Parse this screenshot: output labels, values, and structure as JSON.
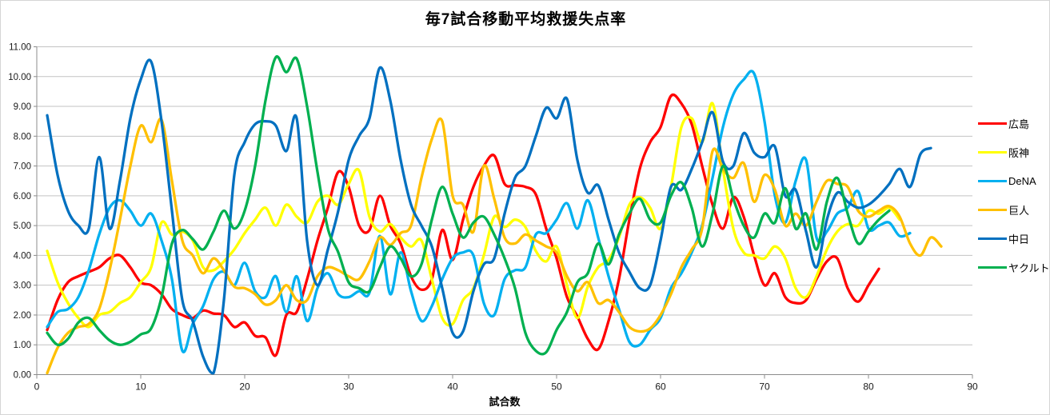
{
  "title": "毎7試合移動平均救援失点率",
  "x_axis": {
    "label": "試合数",
    "tick_labels": [
      "0",
      "10",
      "20",
      "30",
      "40",
      "50",
      "60",
      "70",
      "80",
      "90"
    ],
    "min": 0,
    "max": 90
  },
  "y_axis": {
    "tick_labels": [
      "0.00",
      "1.00",
      "2.00",
      "3.00",
      "4.00",
      "5.00",
      "6.00",
      "7.00",
      "8.00",
      "9.00",
      "10.00",
      "11.00"
    ],
    "min": 0,
    "max": 11
  },
  "legend": {
    "position": "right",
    "items": [
      {
        "id": "hiroshima",
        "label": "広島",
        "color": "#FF0000"
      },
      {
        "id": "hanshin",
        "label": "阪神",
        "color": "#FFFF00"
      },
      {
        "id": "dena",
        "label": "DeNA",
        "color": "#00B0F0"
      },
      {
        "id": "kyojin",
        "label": "巨人",
        "color": "#FFC000"
      },
      {
        "id": "chunichi",
        "label": "中日",
        "color": "#0070C0"
      },
      {
        "id": "yakult",
        "label": "ヤクルト",
        "color": "#00B050"
      }
    ]
  },
  "chart_data": {
    "type": "line",
    "title": "毎7試合移動平均救援失点率",
    "xlabel": "試合数",
    "ylabel": "",
    "xlim": [
      0,
      90
    ],
    "ylim": [
      0,
      11
    ],
    "x_tick_step": 10,
    "y_tick_step": 1,
    "grid": true,
    "smooth": true,
    "x_start": 1,
    "legend_position": "right",
    "series": [
      {
        "id": "hiroshima",
        "name": "広島",
        "color": "#FF0000",
        "values": [
          1.5,
          2.5,
          3.1,
          3.3,
          3.45,
          3.6,
          3.9,
          4.0,
          3.6,
          3.1,
          3.0,
          2.7,
          2.2,
          2.0,
          1.9,
          2.15,
          2.05,
          2.0,
          1.6,
          1.75,
          1.3,
          1.25,
          0.65,
          2.0,
          2.1,
          3.2,
          4.5,
          5.6,
          6.8,
          6.3,
          5.0,
          4.85,
          6.0,
          5.0,
          4.4,
          3.3,
          2.85,
          3.2,
          4.85,
          3.85,
          5.2,
          6.3,
          7.0,
          7.35,
          6.4,
          6.35,
          6.3,
          6.05,
          4.9,
          3.9,
          2.6,
          1.95,
          1.2,
          0.85,
          1.8,
          3.2,
          5.2,
          6.9,
          7.8,
          8.3,
          9.35,
          9.1,
          8.4,
          7.0,
          5.7,
          4.9,
          5.95,
          5.3,
          4.0,
          3.0,
          3.4,
          2.6,
          2.4,
          2.5,
          3.2,
          3.8,
          3.9,
          2.9,
          2.45,
          3.0,
          3.55
        ]
      },
      {
        "id": "hanshin",
        "name": "阪神",
        "color": "#FFFF00",
        "values": [
          4.15,
          3.1,
          2.4,
          1.9,
          1.6,
          2.0,
          2.1,
          2.4,
          2.6,
          3.1,
          3.6,
          5.1,
          4.7,
          4.8,
          4.5,
          3.6,
          3.5,
          3.8,
          4.2,
          4.75,
          5.2,
          5.6,
          5.0,
          5.7,
          5.3,
          5.1,
          5.8,
          6.0,
          5.7,
          6.4,
          6.85,
          5.3,
          4.8,
          5.05,
          4.6,
          4.3,
          4.5,
          3.2,
          1.9,
          1.7,
          2.5,
          2.9,
          4.0,
          5.3,
          4.95,
          5.2,
          4.95,
          4.15,
          3.8,
          4.3,
          3.0,
          1.9,
          2.95,
          3.6,
          3.85,
          4.6,
          5.7,
          5.95,
          5.6,
          4.9,
          6.3,
          8.3,
          8.6,
          7.8,
          9.1,
          6.9,
          4.9,
          4.1,
          4.0,
          3.9,
          4.3,
          3.9,
          2.9,
          2.6,
          3.3,
          4.2,
          4.8,
          5.05,
          5.0,
          5.5,
          5.4,
          5.6,
          5.2
        ]
      },
      {
        "id": "dena",
        "name": "DeNA",
        "color": "#00B0F0",
        "values": [
          1.6,
          2.1,
          2.2,
          2.6,
          3.5,
          4.7,
          5.6,
          5.85,
          5.5,
          5.0,
          5.4,
          4.5,
          3.2,
          0.8,
          1.7,
          2.3,
          3.2,
          3.45,
          3.0,
          3.75,
          2.8,
          2.6,
          3.3,
          2.1,
          3.3,
          1.8,
          2.9,
          3.4,
          2.7,
          2.6,
          2.8,
          2.75,
          4.65,
          2.7,
          4.1,
          2.8,
          1.8,
          2.3,
          3.2,
          3.9,
          4.1,
          4.0,
          2.4,
          2.0,
          3.2,
          3.5,
          3.6,
          4.7,
          4.75,
          5.2,
          5.75,
          4.9,
          5.85,
          4.6,
          3.3,
          2.2,
          1.1,
          1.0,
          1.5,
          1.9,
          2.9,
          3.4,
          4.1,
          5.0,
          6.6,
          8.3,
          9.4,
          9.9,
          10.1,
          8.5,
          6.0,
          5.1,
          6.5,
          7.2,
          4.6,
          4.8,
          5.4,
          5.6,
          6.15,
          4.9,
          5.0,
          5.1,
          4.65,
          4.75
        ]
      },
      {
        "id": "kyojin",
        "name": "巨人",
        "color": "#FFC000",
        "values": [
          0.05,
          0.9,
          1.4,
          1.6,
          1.7,
          2.2,
          3.5,
          5.2,
          7.0,
          8.35,
          7.8,
          8.55,
          6.5,
          4.5,
          4.0,
          3.4,
          3.9,
          3.5,
          2.95,
          2.9,
          2.7,
          2.35,
          2.5,
          3.0,
          2.5,
          2.5,
          3.3,
          3.6,
          3.5,
          3.3,
          3.2,
          3.8,
          4.6,
          4.35,
          4.75,
          5.0,
          6.6,
          7.9,
          8.5,
          6.0,
          5.7,
          4.8,
          7.0,
          5.9,
          4.6,
          4.4,
          4.7,
          4.5,
          4.3,
          4.1,
          3.3,
          2.8,
          3.1,
          2.4,
          2.5,
          2.1,
          1.6,
          1.45,
          1.55,
          2.0,
          2.7,
          3.6,
          4.2,
          4.9,
          7.5,
          6.9,
          6.6,
          7.1,
          5.8,
          6.7,
          6.2,
          5.0,
          5.4,
          5.0,
          5.8,
          6.5,
          6.4,
          6.3,
          5.5,
          5.3,
          5.5,
          5.65,
          5.3,
          4.4,
          4.0,
          4.6,
          4.3
        ]
      },
      {
        "id": "chunichi",
        "name": "中日",
        "color": "#0070C0",
        "values": [
          8.7,
          6.7,
          5.5,
          5.0,
          4.9,
          7.3,
          4.9,
          6.5,
          8.6,
          9.9,
          10.5,
          8.5,
          5.5,
          2.5,
          1.8,
          0.6,
          0.05,
          2.5,
          6.7,
          7.8,
          8.4,
          8.5,
          8.35,
          7.5,
          8.6,
          4.5,
          3.0,
          4.2,
          5.5,
          7.2,
          8.0,
          8.6,
          10.3,
          9.2,
          7.2,
          5.7,
          5.0,
          4.3,
          2.9,
          1.4,
          1.45,
          2.8,
          3.7,
          3.9,
          5.4,
          6.6,
          7.0,
          8.0,
          8.95,
          8.6,
          9.25,
          7.2,
          6.1,
          6.35,
          5.2,
          4.1,
          3.45,
          2.9,
          3.0,
          4.5,
          6.3,
          6.2,
          6.9,
          7.8,
          8.8,
          7.15,
          7.0,
          8.1,
          7.45,
          7.3,
          7.65,
          6.0,
          6.2,
          4.8,
          3.6,
          5.2,
          6.1,
          5.8,
          5.6,
          5.7,
          6.0,
          6.4,
          6.9,
          6.3,
          7.4,
          7.6
        ]
      },
      {
        "id": "yakult",
        "name": "ヤクルト",
        "color": "#00B050",
        "values": [
          1.4,
          1.0,
          1.2,
          1.75,
          1.9,
          1.5,
          1.15,
          1.0,
          1.1,
          1.35,
          1.55,
          2.6,
          4.4,
          4.85,
          4.55,
          4.2,
          4.8,
          5.5,
          4.9,
          5.5,
          7.0,
          9.2,
          10.65,
          10.15,
          10.6,
          9.0,
          6.8,
          4.9,
          4.1,
          3.1,
          2.9,
          2.8,
          3.6,
          4.3,
          3.9,
          3.3,
          3.7,
          5.2,
          6.3,
          5.4,
          4.6,
          5.1,
          5.3,
          4.7,
          3.9,
          2.9,
          1.4,
          0.8,
          0.75,
          1.5,
          2.1,
          3.1,
          3.4,
          4.4,
          3.7,
          4.7,
          5.4,
          5.9,
          5.2,
          5.1,
          6.0,
          6.45,
          5.6,
          4.3,
          5.4,
          7.0,
          5.9,
          5.0,
          4.6,
          5.4,
          5.1,
          6.25,
          4.9,
          5.4,
          4.2,
          5.8,
          6.6,
          5.4,
          4.4,
          4.8,
          5.2,
          5.5
        ]
      }
    ]
  }
}
